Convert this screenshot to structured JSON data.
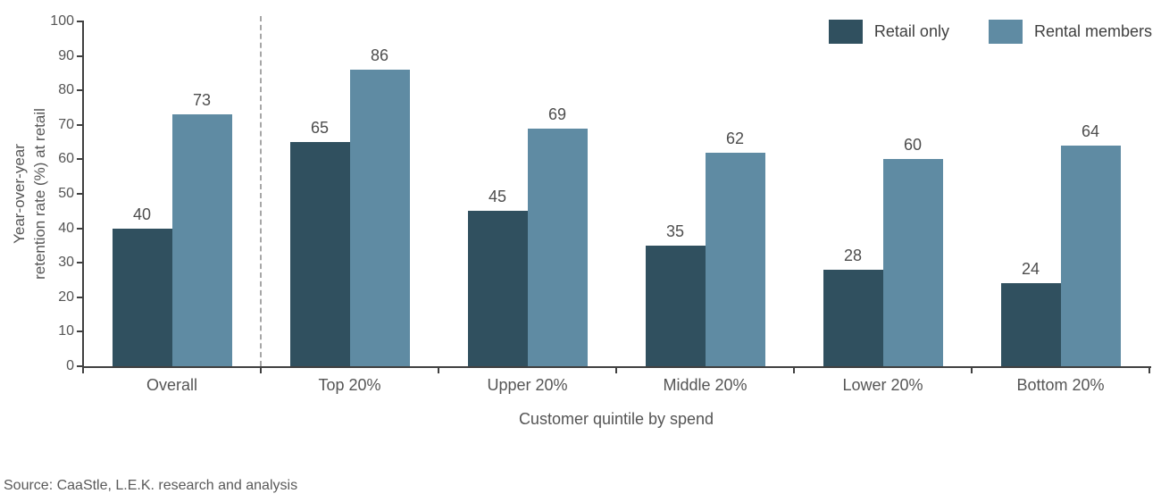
{
  "chart_data": {
    "type": "bar",
    "categories": [
      "Overall",
      "Top 20%",
      "Upper 20%",
      "Middle 20%",
      "Lower 20%",
      "Bottom 20%"
    ],
    "series": [
      {
        "name": "Retail only",
        "color": "#30505f",
        "values": [
          40,
          65,
          45,
          35,
          28,
          24
        ]
      },
      {
        "name": "Rental members",
        "color": "#5f8ba3",
        "values": [
          73,
          86,
          69,
          62,
          60,
          64
        ]
      }
    ],
    "title": "",
    "xlabel": "Customer quintile by spend",
    "ylabel": "Year-over-year retention rate (%) at retail",
    "ylim": [
      0,
      100
    ],
    "ytick_step": 10,
    "grid": false,
    "legend_position": "top-right",
    "data_labels": true,
    "separator_after_category": "Overall"
  },
  "axes": {
    "y_label_line1": "Year-over-year",
    "y_label_line2": "retention rate (%) at retail",
    "x_label": "Customer quintile by spend"
  },
  "legend": {
    "items": [
      {
        "label": "Retail only",
        "color": "#30505f"
      },
      {
        "label": "Rental members",
        "color": "#5f8ba3"
      }
    ]
  },
  "footer": {
    "source": "Source: CaaStle, L.E.K. research and analysis"
  }
}
